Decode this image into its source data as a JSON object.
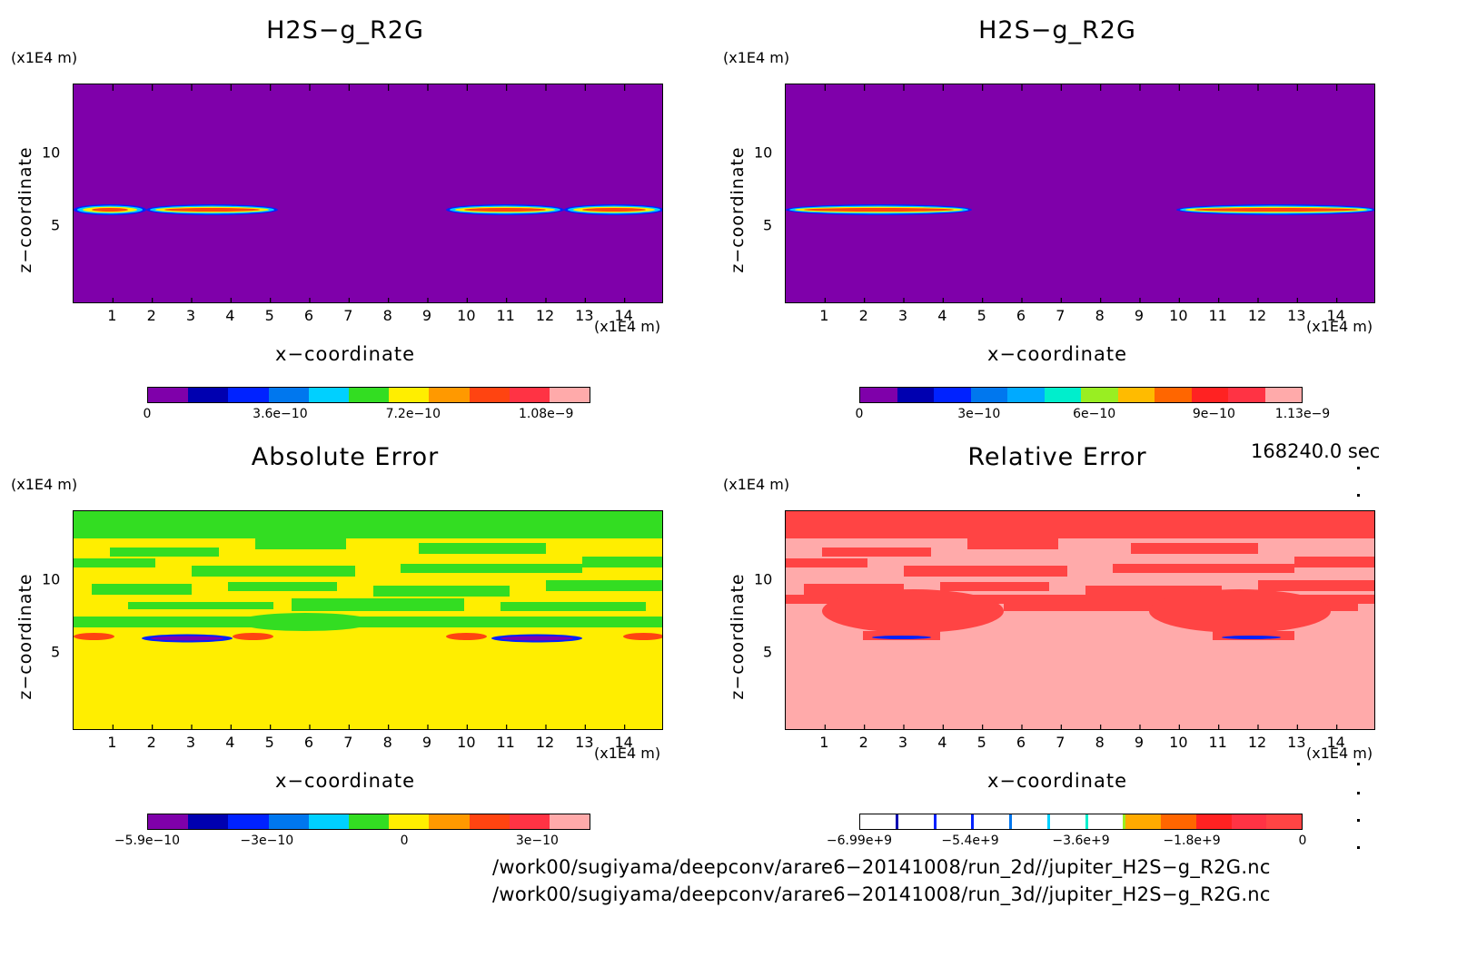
{
  "panels": [
    {
      "title": "H2S−g_R2G",
      "z_unit": "(x1E4 m)",
      "x_unit": "(x1E4 m)",
      "xlabel": "x−coordinate",
      "zlabel": "z−coordinate",
      "background": "#7f00aa",
      "colorbar": [
        "#7f00aa",
        "#0000b0",
        "#0022ff",
        "#0077ee",
        "#00d0ff",
        "#33dd22",
        "#ffee00",
        "#ff9900",
        "#ff4411",
        "#ff3344",
        "#ffaaaa"
      ],
      "colorbar_labels": [
        "0",
        "3.6e−10",
        "7.2e−10",
        "1.08e−9"
      ]
    },
    {
      "title": "H2S−g_R2G",
      "z_unit": "(x1E4 m)",
      "x_unit": "(x1E4 m)",
      "xlabel": "x−coordinate",
      "zlabel": "z−coordinate",
      "background": "#7f00aa",
      "colorbar": [
        "#7f00aa",
        "#0000b0",
        "#0022ff",
        "#0077ee",
        "#00aaff",
        "#00eecc",
        "#99ee22",
        "#ffbb00",
        "#ff6600",
        "#ff2222",
        "#ff3344",
        "#ffaaaa"
      ],
      "colorbar_labels": [
        "0",
        "3e−10",
        "6e−10",
        "9e−10",
        "1.13e−9"
      ]
    },
    {
      "title": "Absolute Error",
      "z_unit": "(x1E4 m)",
      "x_unit": "(x1E4 m)",
      "xlabel": "x−coordinate",
      "zlabel": "z−coordinate",
      "background": "#ffee00",
      "colorbar": [
        "#7f00aa",
        "#0000b0",
        "#0022ff",
        "#0077ee",
        "#00d0ff",
        "#33dd22",
        "#ffee00",
        "#ff9900",
        "#ff4411",
        "#ff3344",
        "#ffaaaa"
      ],
      "colorbar_labels": [
        "−5.9e−10",
        "−3e−10",
        "0",
        "3e−10"
      ]
    },
    {
      "title": "Relative Error",
      "z_unit": "(x1E4 m)",
      "x_unit": "(x1E4 m)",
      "xlabel": "x−coordinate",
      "zlabel": "z−coordinate",
      "background": "#ffaaaa",
      "colorbar": [
        "#ffffff",
        "#ffffff",
        "#ffffff",
        "#ffffff",
        "#ffffff",
        "#ffffff",
        "#ffffff",
        "#ffaa00",
        "#ff6600",
        "#ff2222",
        "#ff3344",
        "#ff4444"
      ],
      "colorbar_labels": [
        "−6.99e+9",
        "−5.4e+9",
        "−3.6e+9",
        "−1.8e+9",
        "0"
      ]
    }
  ],
  "x_ticks": [
    "1",
    "2",
    "3",
    "4",
    "5",
    "6",
    "7",
    "8",
    "9",
    "10",
    "11",
    "12",
    "13",
    "14"
  ],
  "z_ticks": [
    "10",
    "5"
  ],
  "time_label": "168240.0 sec",
  "file_paths": [
    "/work00/sugiyama/deepconv/arare6−20141008/run_2d//jupiter_H2S−g_R2G.nc",
    "/work00/sugiyama/deepconv/arare6−20141008/run_3d//jupiter_H2S−g_R2G.nc"
  ],
  "chart_data": [
    {
      "type": "heatmap",
      "title": "H2S−g_R2G",
      "xlabel": "x−coordinate",
      "ylabel": "z−coordinate",
      "x_unit": "(x1E4 m)",
      "y_unit": "(x1E4 m)",
      "xlim": [
        0,
        15
      ],
      "ylim": [
        0,
        15
      ],
      "x_ticks": [
        1,
        2,
        3,
        4,
        5,
        6,
        7,
        8,
        9,
        10,
        11,
        12,
        13,
        14
      ],
      "y_ticks": [
        5,
        10
      ],
      "colorbar_ticks": [
        0,
        3.6e-10,
        7.2e-10,
        1.08e-09
      ],
      "features": [
        {
          "z": 6.7,
          "x_range": [
            0,
            5.3
          ],
          "peak_value": 1.08e-09
        },
        {
          "z": 6.7,
          "x_range": [
            9.8,
            15
          ],
          "peak_value": 1.08e-09
        }
      ]
    },
    {
      "type": "heatmap",
      "title": "H2S−g_R2G",
      "xlabel": "x−coordinate",
      "ylabel": "z−coordinate",
      "x_unit": "(x1E4 m)",
      "y_unit": "(x1E4 m)",
      "xlim": [
        0,
        15
      ],
      "ylim": [
        0,
        15
      ],
      "x_ticks": [
        1,
        2,
        3,
        4,
        5,
        6,
        7,
        8,
        9,
        10,
        11,
        12,
        13,
        14
      ],
      "y_ticks": [
        5,
        10
      ],
      "colorbar_ticks": [
        0,
        3e-10,
        6e-10,
        9e-10,
        1.13e-09
      ],
      "features": [
        {
          "z": 6.7,
          "x_range": [
            0,
            4.9
          ],
          "peak_value": 9e-10
        },
        {
          "z": 6.7,
          "x_range": [
            10.3,
            15
          ],
          "peak_value": 9e-10
        }
      ]
    },
    {
      "type": "heatmap",
      "title": "Absolute Error",
      "xlabel": "x−coordinate",
      "ylabel": "z−coordinate",
      "x_unit": "(x1E4 m)",
      "y_unit": "(x1E4 m)",
      "xlim": [
        0,
        15
      ],
      "ylim": [
        0,
        15
      ],
      "x_ticks": [
        1,
        2,
        3,
        4,
        5,
        6,
        7,
        8,
        9,
        10,
        11,
        12,
        13,
        14
      ],
      "y_ticks": [
        5,
        10
      ],
      "colorbar_ticks": [
        -5.9e-10,
        -3e-10,
        0,
        3e-10
      ]
    },
    {
      "type": "heatmap",
      "title": "Relative Error",
      "xlabel": "x−coordinate",
      "ylabel": "z−coordinate",
      "x_unit": "(x1E4 m)",
      "y_unit": "(x1E4 m)",
      "xlim": [
        0,
        15
      ],
      "ylim": [
        0,
        15
      ],
      "x_ticks": [
        1,
        2,
        3,
        4,
        5,
        6,
        7,
        8,
        9,
        10,
        11,
        12,
        13,
        14
      ],
      "y_ticks": [
        5,
        10
      ],
      "colorbar_ticks": [
        -6990000000.0,
        -5400000000.0,
        -3600000000.0,
        -1800000000.0,
        0
      ]
    }
  ]
}
